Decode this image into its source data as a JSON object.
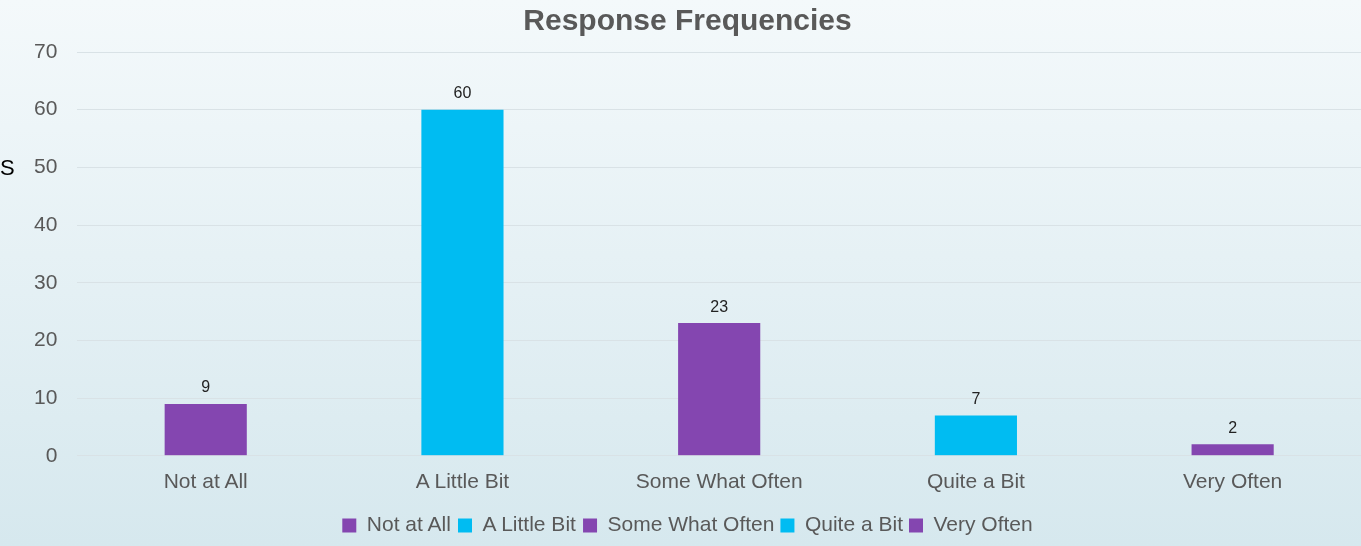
{
  "chart_data": {
    "type": "bar",
    "title": "Response Frequencies",
    "ylabel": "S",
    "categories": [
      "Not at All",
      "A Little Bit",
      "Some What Often",
      "Quite a Bit",
      "Very Often"
    ],
    "series": [
      {
        "name": "Not at All",
        "color": "#8446b0",
        "values": [
          9,
          null,
          null,
          null,
          null
        ]
      },
      {
        "name": "A Little Bit",
        "color": "#00bcf2",
        "values": [
          null,
          60,
          null,
          null,
          null
        ]
      },
      {
        "name": "Some What Often",
        "color": "#8446b0",
        "values": [
          null,
          null,
          23,
          null,
          null
        ]
      },
      {
        "name": "Quite a Bit",
        "color": "#00bcf2",
        "values": [
          null,
          null,
          null,
          7,
          null
        ]
      },
      {
        "name": "Very Often",
        "color": "#8446b0",
        "values": [
          null,
          null,
          null,
          null,
          2
        ]
      }
    ],
    "ylim": [
      0,
      70
    ],
    "yticks": [
      0,
      10,
      20,
      30,
      40,
      50,
      60,
      70
    ],
    "grid": "y",
    "legend": "bottom",
    "data_labels": true
  }
}
